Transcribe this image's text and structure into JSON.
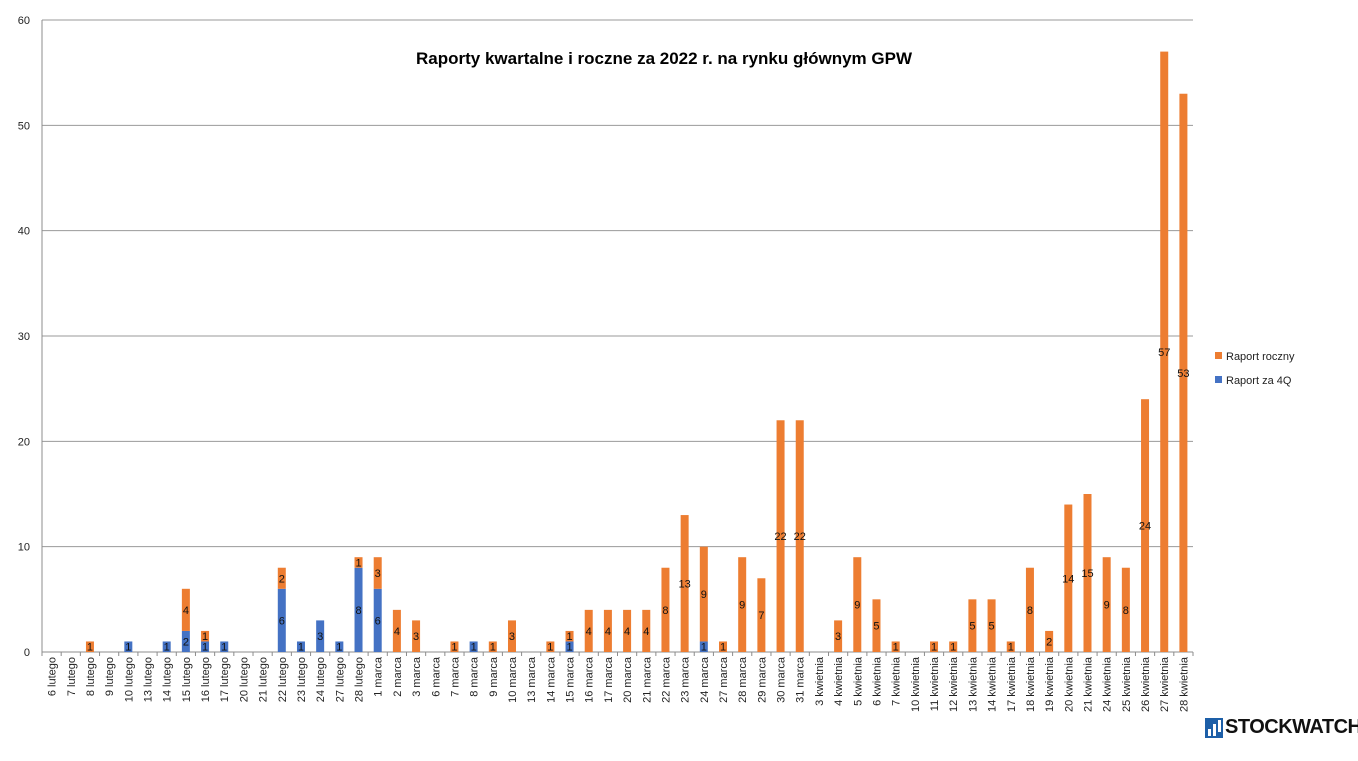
{
  "chart_data": {
    "type": "bar",
    "stacked": true,
    "title": "Raporty kwartalne i roczne za 2022 r. na rynku głównym GPW",
    "xlabel": "",
    "ylabel": "",
    "ylim": [
      0,
      60
    ],
    "yticks": [
      0,
      10,
      20,
      30,
      40,
      50,
      60
    ],
    "grid": true,
    "legend_position": "right",
    "categories": [
      "6 lutego",
      "7 lutego",
      "8 lutego",
      "9 lutego",
      "10 lutego",
      "13 lutego",
      "14 lutego",
      "15 lutego",
      "16 lutego",
      "17 lutego",
      "20 lutego",
      "21 lutego",
      "22 lutego",
      "23 lutego",
      "24 lutego",
      "27 lutego",
      "28 lutego",
      "1 marca",
      "2 marca",
      "3 marca",
      "6 marca",
      "7 marca",
      "8 marca",
      "9 marca",
      "10 marca",
      "13 marca",
      "14 marca",
      "15 marca",
      "16 marca",
      "17 marca",
      "20 marca",
      "21 marca",
      "22 marca",
      "23 marca",
      "24 marca",
      "27 marca",
      "28 marca",
      "29 marca",
      "30 marca",
      "31 marca",
      "3 kwietnia",
      "4 kwietnia",
      "5 kwietnia",
      "6 kwietnia",
      "7 kwietnia",
      "10 kwietnia",
      "11 kwietnia",
      "12 kwietnia",
      "13 kwietnia",
      "14 kwietnia",
      "17 kwietnia",
      "18 kwietnia",
      "19 kwietnia",
      "20 kwietnia",
      "21 kwietnia",
      "24 kwietnia",
      "25 kwietnia",
      "26 kwietnia",
      "27 kwietnia",
      "28 kwietnia"
    ],
    "series": [
      {
        "name": "Raport za 4Q",
        "color": "#4472c4",
        "values": [
          0,
          0,
          0,
          0,
          1,
          0,
          1,
          2,
          1,
          1,
          0,
          0,
          6,
          1,
          3,
          1,
          8,
          6,
          0,
          0,
          0,
          0,
          1,
          0,
          0,
          0,
          0,
          1,
          0,
          0,
          0,
          0,
          0,
          0,
          1,
          0,
          0,
          0,
          0,
          0,
          0,
          0,
          0,
          0,
          0,
          0,
          0,
          0,
          0,
          0,
          0,
          0,
          0,
          0,
          0,
          0,
          0,
          0,
          0,
          0
        ]
      },
      {
        "name": "Raport roczny",
        "color": "#ed7d31",
        "values": [
          0,
          0,
          1,
          0,
          0,
          0,
          0,
          4,
          1,
          0,
          0,
          0,
          2,
          0,
          0,
          0,
          1,
          3,
          4,
          3,
          0,
          1,
          0,
          1,
          3,
          0,
          1,
          1,
          4,
          4,
          4,
          4,
          8,
          13,
          9,
          1,
          9,
          7,
          22,
          22,
          0,
          3,
          9,
          5,
          1,
          0,
          1,
          1,
          5,
          5,
          1,
          8,
          2,
          14,
          15,
          9,
          8,
          24,
          57,
          53
        ]
      }
    ]
  },
  "legend": {
    "items": [
      {
        "label": "Raport roczny",
        "color": "#ed7d31"
      },
      {
        "label": "Raport za 4Q",
        "color": "#4472c4"
      }
    ]
  },
  "logo": {
    "text": "STOCKWATCH",
    "icon": "bar-chart-logo-icon"
  }
}
